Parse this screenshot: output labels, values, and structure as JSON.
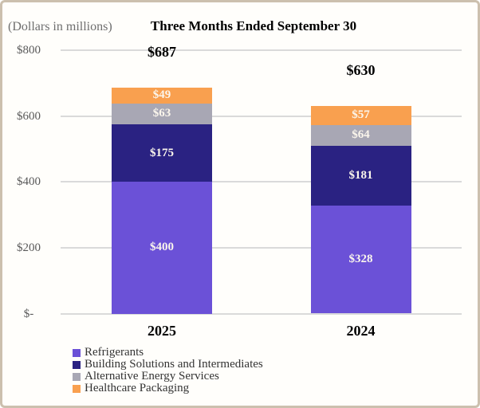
{
  "header": {
    "units_note": "(Dollars in millions)",
    "title": "Three Months Ended September 30"
  },
  "chart_data": {
    "type": "bar",
    "stacked": true,
    "title": "Three Months Ended September 30",
    "units_note": "(Dollars in millions)",
    "categories": [
      "2025",
      "2024"
    ],
    "series": [
      {
        "name": "Refrigerants",
        "color": "#6b51d7",
        "values": [
          400,
          328
        ],
        "labels": [
          "$400",
          "$328"
        ]
      },
      {
        "name": "Building Solutions and Intermediates",
        "color": "#2a2282",
        "values": [
          175,
          181
        ],
        "labels": [
          "$175",
          "$181"
        ]
      },
      {
        "name": "Alternative Energy Services",
        "color": "#a8a7b4",
        "values": [
          63,
          64
        ],
        "labels": [
          "$63",
          "$64"
        ]
      },
      {
        "name": "Healthcare Packaging",
        "color": "#f9a04f",
        "values": [
          49,
          57
        ],
        "labels": [
          "$49",
          "$57"
        ]
      }
    ],
    "totals": [
      687,
      630
    ],
    "total_labels": [
      "$687",
      "$630"
    ],
    "y_axis": {
      "ylim": [
        0,
        800
      ],
      "grid": true,
      "ticks": [
        {
          "value": 0,
          "label": "$-"
        },
        {
          "value": 200,
          "label": "$200"
        },
        {
          "value": 400,
          "label": "$400"
        },
        {
          "value": 600,
          "label": "$600"
        },
        {
          "value": 800,
          "label": "$800"
        }
      ]
    },
    "legend": {
      "position": "bottom-left",
      "entries": [
        "Refrigerants",
        "Building Solutions and Intermediates",
        "Alternative Energy Services",
        "Healthcare Packaging"
      ]
    }
  },
  "colors": {
    "frame_border": "#ccc0ae",
    "background": "#fffefb",
    "gridline": "#dadada",
    "axis_text": "#595959",
    "title_text": "#000000",
    "segment_label_text": "#fbf6ec",
    "legend_text": "#333333"
  }
}
